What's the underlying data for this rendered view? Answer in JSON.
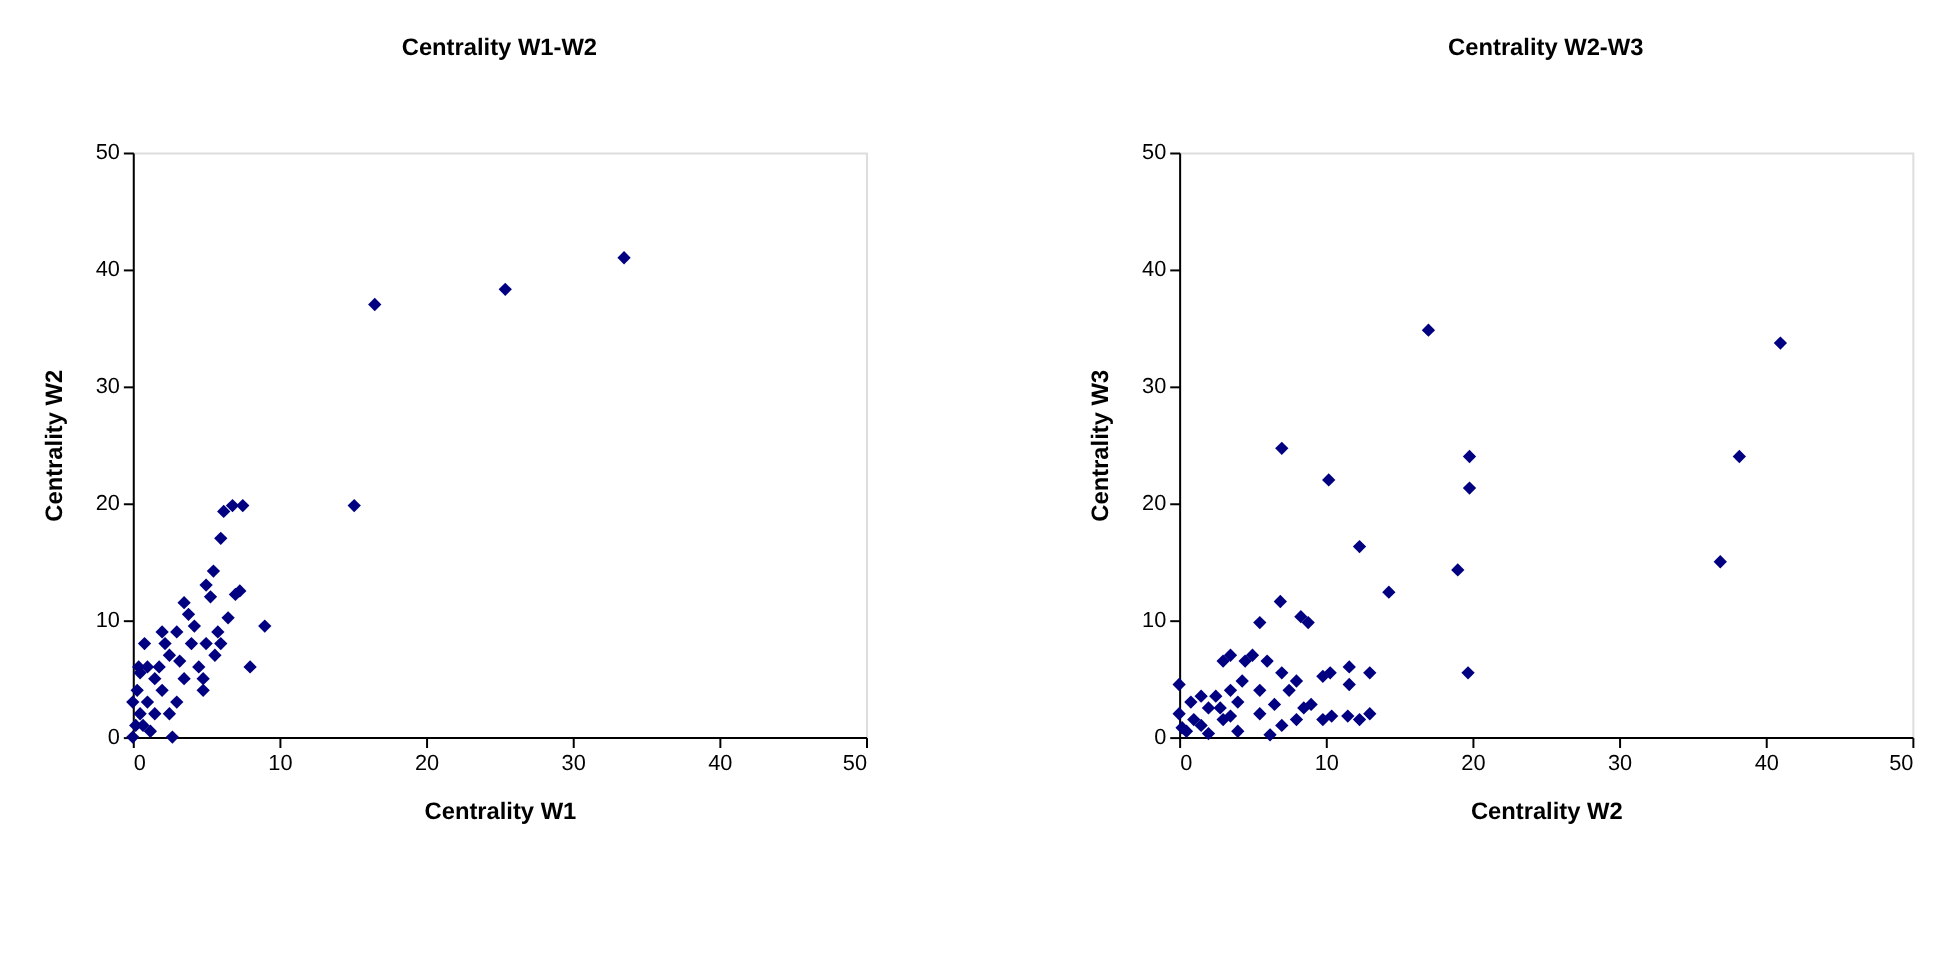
{
  "chart_data": [
    {
      "type": "scatter",
      "title": "Centrality W1-W2",
      "xlabel": "Centrality W1",
      "ylabel": "Centrality W2",
      "xlim": [
        0,
        50
      ],
      "ylim": [
        0,
        50
      ],
      "xticks": [
        0,
        10,
        20,
        30,
        40,
        50
      ],
      "yticks": [
        0,
        10,
        20,
        30,
        40,
        50
      ],
      "grid": false,
      "marker": "diamond",
      "series": [
        {
          "color": "#000080",
          "x": [
            15.1,
            16.5,
            25.4,
            33.5,
            8,
            9,
            7.5,
            6.8,
            6.2,
            6,
            7.3,
            7,
            6.5,
            5.5,
            5,
            5.3,
            5,
            5.8,
            4.8,
            4,
            3.5,
            3.8,
            3,
            2.5,
            2.7,
            2,
            1.5,
            0.8,
            0.5,
            0,
            0.2,
            0.5,
            1,
            1.5,
            2,
            0.3,
            1,
            3.5,
            3,
            2.5,
            1.8,
            4.5,
            4.2,
            6,
            0.7,
            1.2,
            0,
            0.4,
            2.2,
            3.2,
            5.6,
            4.8
          ],
          "values": [
            19.8,
            37,
            38.3,
            41,
            6,
            9.5,
            19.8,
            19.8,
            19.3,
            17,
            12.5,
            12.2,
            10.2,
            14.2,
            13,
            12,
            8,
            9,
            4,
            8,
            11.5,
            10.5,
            9,
            7,
            0,
            9,
            5,
            8,
            5.5,
            0,
            1,
            2,
            3,
            2,
            4,
            4,
            6,
            5,
            3,
            2,
            6,
            6,
            9.5,
            8,
            1,
            0.5,
            3,
            6,
            8,
            6.5,
            7,
            5
          ]
        }
      ]
    },
    {
      "type": "scatter",
      "title": "Centrality W2-W3",
      "xlabel": "Centrality W2",
      "ylabel": "Centrality W3",
      "xlim": [
        0,
        50
      ],
      "ylim": [
        0,
        50
      ],
      "xticks": [
        0,
        10,
        20,
        30,
        40,
        50
      ],
      "yticks": [
        0,
        10,
        20,
        30,
        40,
        50
      ],
      "grid": false,
      "marker": "diamond",
      "series": [
        {
          "color": "#000080",
          "x": [
            17,
            41,
            38.2,
            36.9,
            19.8,
            19.8,
            19.7,
            19,
            14.3,
            12.3,
            10.2,
            7,
            6.9,
            5.5,
            8.3,
            8.8,
            9.8,
            10.3,
            11.6,
            11.6,
            13,
            12.3,
            13,
            10.4,
            9.8,
            8.5,
            7.5,
            8,
            7,
            6,
            5,
            4.5,
            3.5,
            3,
            0,
            2.5,
            4,
            5.5,
            5.5,
            6.2,
            7,
            8,
            4,
            3,
            2,
            1,
            0.5,
            0,
            1.5,
            2,
            3.5,
            0.8,
            1.5,
            2.8,
            3.5,
            4.3,
            0.2,
            9,
            11.5,
            6.5
          ],
          "values": [
            34.8,
            33.7,
            24,
            15,
            24,
            21.3,
            5.5,
            14.3,
            12.4,
            16.3,
            22,
            24.7,
            11.6,
            9.8,
            10.3,
            9.8,
            5.2,
            5.5,
            6,
            4.5,
            5.5,
            1.5,
            2,
            1.8,
            1.5,
            2.5,
            4,
            4.8,
            5.5,
            6.5,
            7,
            6.5,
            7,
            6.5,
            4.5,
            3.5,
            3,
            4,
            2,
            0.2,
            1,
            1.5,
            0.5,
            1.5,
            2.5,
            1.5,
            0.5,
            2,
            3.5,
            0.3,
            4,
            3,
            1,
            2.5,
            1.8,
            4.8,
            0.8,
            2.8,
            1.8,
            2.8
          ]
        }
      ]
    }
  ]
}
